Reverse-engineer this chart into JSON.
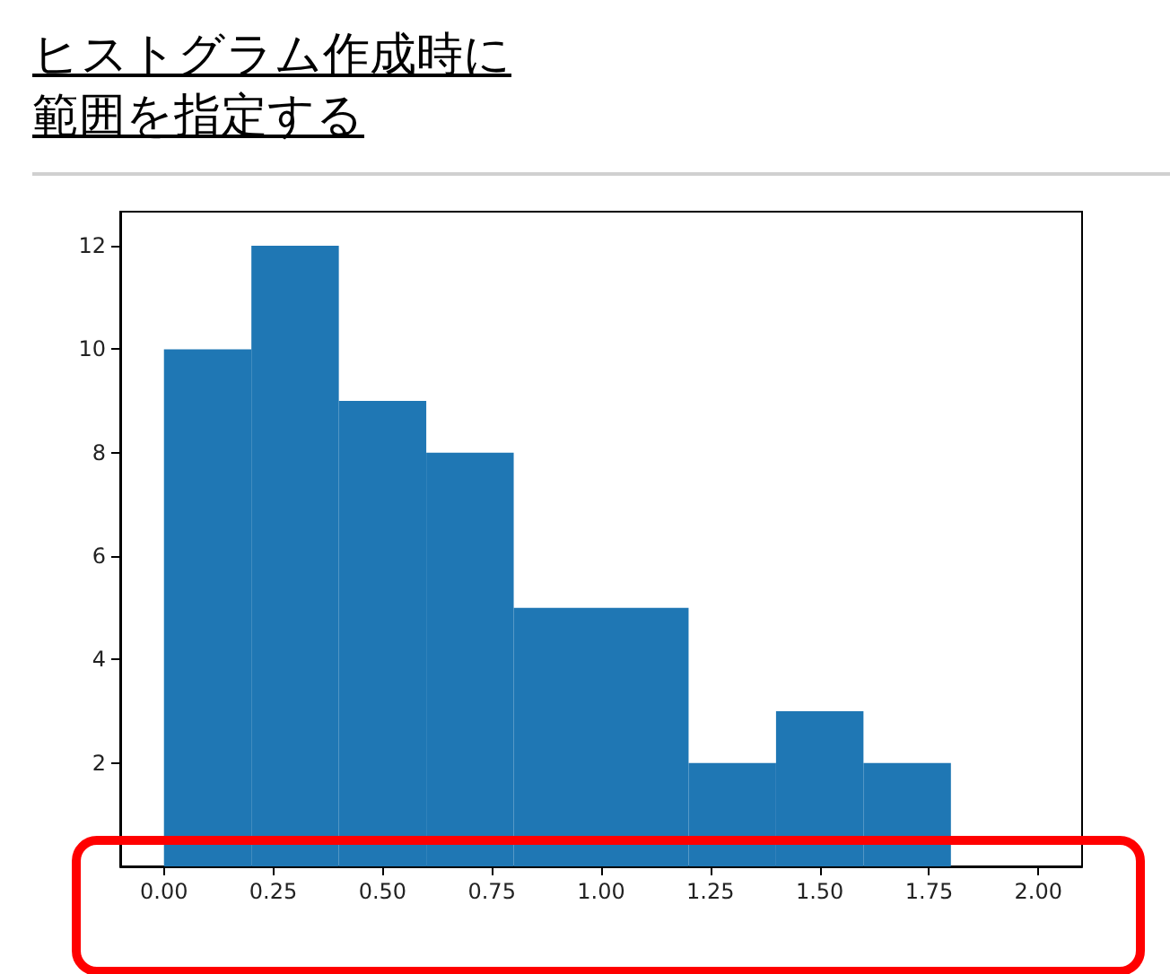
{
  "chart_data": {
    "type": "histogram",
    "title": "ヒストグラム作成時に範囲を指定する",
    "bins": [
      0,
      0.2,
      0.4,
      0.6,
      0.8,
      1.0,
      1.2,
      1.4,
      1.6,
      1.8,
      2.0
    ],
    "values": [
      10,
      12,
      9,
      8,
      5,
      5,
      2,
      3,
      2,
      0
    ],
    "color": "#1f77b4",
    "xlim": [
      -0.1,
      2.1
    ],
    "xticks": [
      {
        "value": 0,
        "label": "0.00"
      },
      {
        "value": 0.25,
        "label": "0.25"
      },
      {
        "value": 0.5,
        "label": "0.50"
      },
      {
        "value": 0.75,
        "label": "0.75"
      },
      {
        "value": 1,
        "label": "1.00"
      },
      {
        "value": 1.25,
        "label": "1.25"
      },
      {
        "value": 1.5,
        "label": "1.50"
      },
      {
        "value": 1.75,
        "label": "1.75"
      },
      {
        "value": 2,
        "label": "2.00"
      }
    ],
    "ylim": [
      0,
      12.66
    ],
    "yticks": [
      2,
      4,
      6,
      8,
      10,
      12
    ],
    "grid": false
  }
}
